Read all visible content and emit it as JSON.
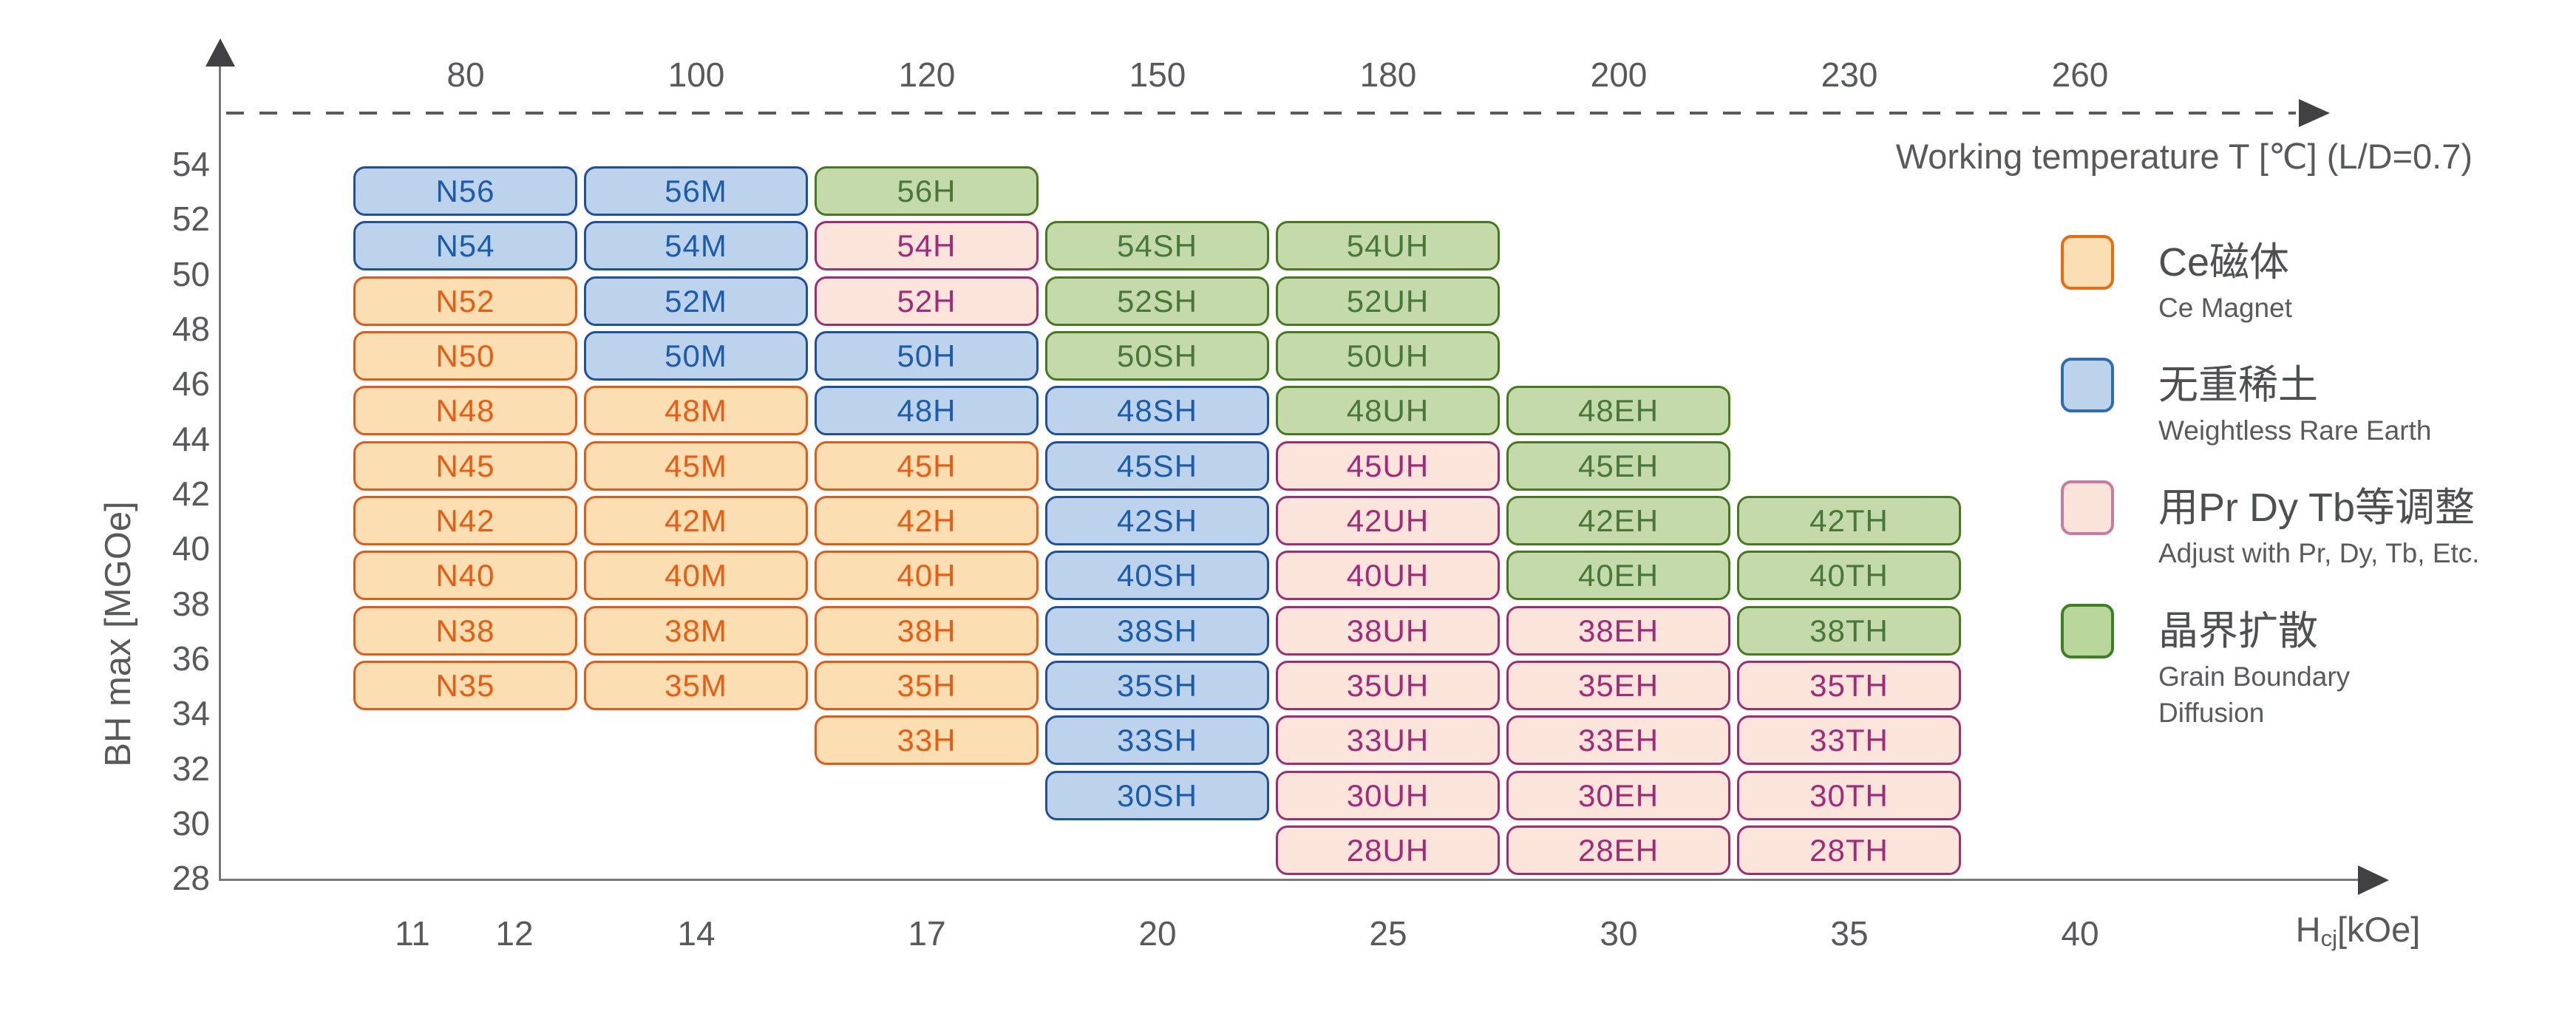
{
  "chart_data": {
    "type": "heatmap",
    "top_axis": {
      "label": "Working temperature T [℃] (L/D=0.7)",
      "ticks": [
        "80",
        "100",
        "120",
        "150",
        "180",
        "200",
        "230",
        "260"
      ]
    },
    "bottom_axis": {
      "label": "Hcj[kOe]",
      "label_rich": {
        "base": "H",
        "sub": "cj",
        "unit": "[kOe]"
      },
      "ticks": [
        "11",
        "12",
        "14",
        "17",
        "20",
        "25",
        "30",
        "35",
        "40"
      ]
    },
    "left_axis": {
      "label": "BH max [MGOe]",
      "ticks": [
        "54",
        "52",
        "50",
        "48",
        "46",
        "44",
        "42",
        "40",
        "38",
        "36",
        "34",
        "32",
        "30",
        "28"
      ]
    },
    "categories": {
      "ce": {
        "name": "Ce Magnet",
        "fill": "#fbdeb2",
        "border": "#e25a18",
        "text": "#ea5c12",
        "legend_fill": "#fbdfb4",
        "legend_border": "#ea6c0c"
      },
      "wre": {
        "name": "Weightless Rare Earth",
        "fill": "#bdd3ec",
        "border": "#1f509e",
        "text": "#1c5cac",
        "legend_fill": "#bdd3ec",
        "legend_border": "#2e6db4"
      },
      "adj": {
        "name": "Adjust with Pr, Dy, Tb, Etc.",
        "fill": "#fbe5da",
        "border": "#a02c72",
        "text": "#a3297a",
        "legend_fill": "#fae3d9",
        "legend_border": "#c77ba3"
      },
      "gbd": {
        "name": "Grain Boundary Diffusion",
        "fill": "#c5daab",
        "border": "#47791f",
        "text": "#47783a",
        "legend_fill": "#b9d79c",
        "legend_border": "#3c8223"
      }
    },
    "legend": [
      {
        "cat": "ce",
        "title": "Ce磁体",
        "subtitle": "Ce Magnet"
      },
      {
        "cat": "wre",
        "title": "无重稀土",
        "subtitle": "Weightless Rare Earth"
      },
      {
        "cat": "adj",
        "title": "用Pr Dy Tb等调整",
        "subtitle": "Adjust with Pr, Dy, Tb, Etc."
      },
      {
        "cat": "gbd",
        "title": "晶界扩散",
        "subtitle": "Grain Boundary\nDiffusion"
      }
    ],
    "grid": {
      "columns": [
        "N",
        "M",
        "H",
        "SH",
        "UH",
        "EH",
        "TH"
      ],
      "rows": [
        {
          "grade": "56",
          "cells": [
            {
              "label": "N56",
              "col": 0,
              "cat": "wre"
            },
            {
              "label": "56M",
              "col": 1,
              "cat": "wre"
            },
            {
              "label": "56H",
              "col": 2,
              "cat": "gbd"
            }
          ]
        },
        {
          "grade": "54",
          "cells": [
            {
              "label": "N54",
              "col": 0,
              "cat": "wre"
            },
            {
              "label": "54M",
              "col": 1,
              "cat": "wre"
            },
            {
              "label": "54H",
              "col": 2,
              "cat": "adj"
            },
            {
              "label": "54SH",
              "col": 3,
              "cat": "gbd"
            },
            {
              "label": "54UH",
              "col": 4,
              "cat": "gbd"
            }
          ]
        },
        {
          "grade": "52",
          "cells": [
            {
              "label": "N52",
              "col": 0,
              "cat": "ce"
            },
            {
              "label": "52M",
              "col": 1,
              "cat": "wre"
            },
            {
              "label": "52H",
              "col": 2,
              "cat": "adj"
            },
            {
              "label": "52SH",
              "col": 3,
              "cat": "gbd"
            },
            {
              "label": "52UH",
              "col": 4,
              "cat": "gbd"
            }
          ]
        },
        {
          "grade": "50",
          "cells": [
            {
              "label": "N50",
              "col": 0,
              "cat": "ce"
            },
            {
              "label": "50M",
              "col": 1,
              "cat": "wre"
            },
            {
              "label": "50H",
              "col": 2,
              "cat": "wre"
            },
            {
              "label": "50SH",
              "col": 3,
              "cat": "gbd"
            },
            {
              "label": "50UH",
              "col": 4,
              "cat": "gbd"
            }
          ]
        },
        {
          "grade": "48",
          "cells": [
            {
              "label": "N48",
              "col": 0,
              "cat": "ce"
            },
            {
              "label": "48M",
              "col": 1,
              "cat": "ce"
            },
            {
              "label": "48H",
              "col": 2,
              "cat": "wre"
            },
            {
              "label": "48SH",
              "col": 3,
              "cat": "wre"
            },
            {
              "label": "48UH",
              "col": 4,
              "cat": "gbd"
            },
            {
              "label": "48EH",
              "col": 5,
              "cat": "gbd"
            }
          ]
        },
        {
          "grade": "45",
          "cells": [
            {
              "label": "N45",
              "col": 0,
              "cat": "ce"
            },
            {
              "label": "45M",
              "col": 1,
              "cat": "ce"
            },
            {
              "label": "45H",
              "col": 2,
              "cat": "ce"
            },
            {
              "label": "45SH",
              "col": 3,
              "cat": "wre"
            },
            {
              "label": "45UH",
              "col": 4,
              "cat": "adj"
            },
            {
              "label": "45EH",
              "col": 5,
              "cat": "gbd"
            }
          ]
        },
        {
          "grade": "42",
          "cells": [
            {
              "label": "N42",
              "col": 0,
              "cat": "ce"
            },
            {
              "label": "42M",
              "col": 1,
              "cat": "ce"
            },
            {
              "label": "42H",
              "col": 2,
              "cat": "ce"
            },
            {
              "label": "42SH",
              "col": 3,
              "cat": "wre"
            },
            {
              "label": "42UH",
              "col": 4,
              "cat": "adj"
            },
            {
              "label": "42EH",
              "col": 5,
              "cat": "gbd"
            },
            {
              "label": "42TH",
              "col": 6,
              "cat": "gbd"
            }
          ]
        },
        {
          "grade": "40",
          "cells": [
            {
              "label": "N40",
              "col": 0,
              "cat": "ce"
            },
            {
              "label": "40M",
              "col": 1,
              "cat": "ce"
            },
            {
              "label": "40H",
              "col": 2,
              "cat": "ce"
            },
            {
              "label": "40SH",
              "col": 3,
              "cat": "wre"
            },
            {
              "label": "40UH",
              "col": 4,
              "cat": "adj"
            },
            {
              "label": "40EH",
              "col": 5,
              "cat": "gbd"
            },
            {
              "label": "40TH",
              "col": 6,
              "cat": "gbd"
            }
          ]
        },
        {
          "grade": "38",
          "cells": [
            {
              "label": "N38",
              "col": 0,
              "cat": "ce"
            },
            {
              "label": "38M",
              "col": 1,
              "cat": "ce"
            },
            {
              "label": "38H",
              "col": 2,
              "cat": "ce"
            },
            {
              "label": "38SH",
              "col": 3,
              "cat": "wre"
            },
            {
              "label": "38UH",
              "col": 4,
              "cat": "adj"
            },
            {
              "label": "38EH",
              "col": 5,
              "cat": "adj"
            },
            {
              "label": "38TH",
              "col": 6,
              "cat": "gbd"
            }
          ]
        },
        {
          "grade": "35",
          "cells": [
            {
              "label": "N35",
              "col": 0,
              "cat": "ce"
            },
            {
              "label": "35M",
              "col": 1,
              "cat": "ce"
            },
            {
              "label": "35H",
              "col": 2,
              "cat": "ce"
            },
            {
              "label": "35SH",
              "col": 3,
              "cat": "wre"
            },
            {
              "label": "35UH",
              "col": 4,
              "cat": "adj"
            },
            {
              "label": "35EH",
              "col": 5,
              "cat": "adj"
            },
            {
              "label": "35TH",
              "col": 6,
              "cat": "adj"
            }
          ]
        },
        {
          "grade": "33",
          "cells": [
            {
              "label": "33H",
              "col": 2,
              "cat": "ce"
            },
            {
              "label": "33SH",
              "col": 3,
              "cat": "wre"
            },
            {
              "label": "33UH",
              "col": 4,
              "cat": "adj"
            },
            {
              "label": "33EH",
              "col": 5,
              "cat": "adj"
            },
            {
              "label": "33TH",
              "col": 6,
              "cat": "adj"
            }
          ]
        },
        {
          "grade": "30",
          "cells": [
            {
              "label": "30SH",
              "col": 3,
              "cat": "wre"
            },
            {
              "label": "30UH",
              "col": 4,
              "cat": "adj"
            },
            {
              "label": "30EH",
              "col": 5,
              "cat": "adj"
            },
            {
              "label": "30TH",
              "col": 6,
              "cat": "adj"
            }
          ]
        },
        {
          "grade": "28",
          "cells": [
            {
              "label": "28UH",
              "col": 4,
              "cat": "adj"
            },
            {
              "label": "28EH",
              "col": 5,
              "cat": "adj"
            },
            {
              "label": "28TH",
              "col": 6,
              "cat": "adj"
            }
          ]
        }
      ]
    }
  }
}
